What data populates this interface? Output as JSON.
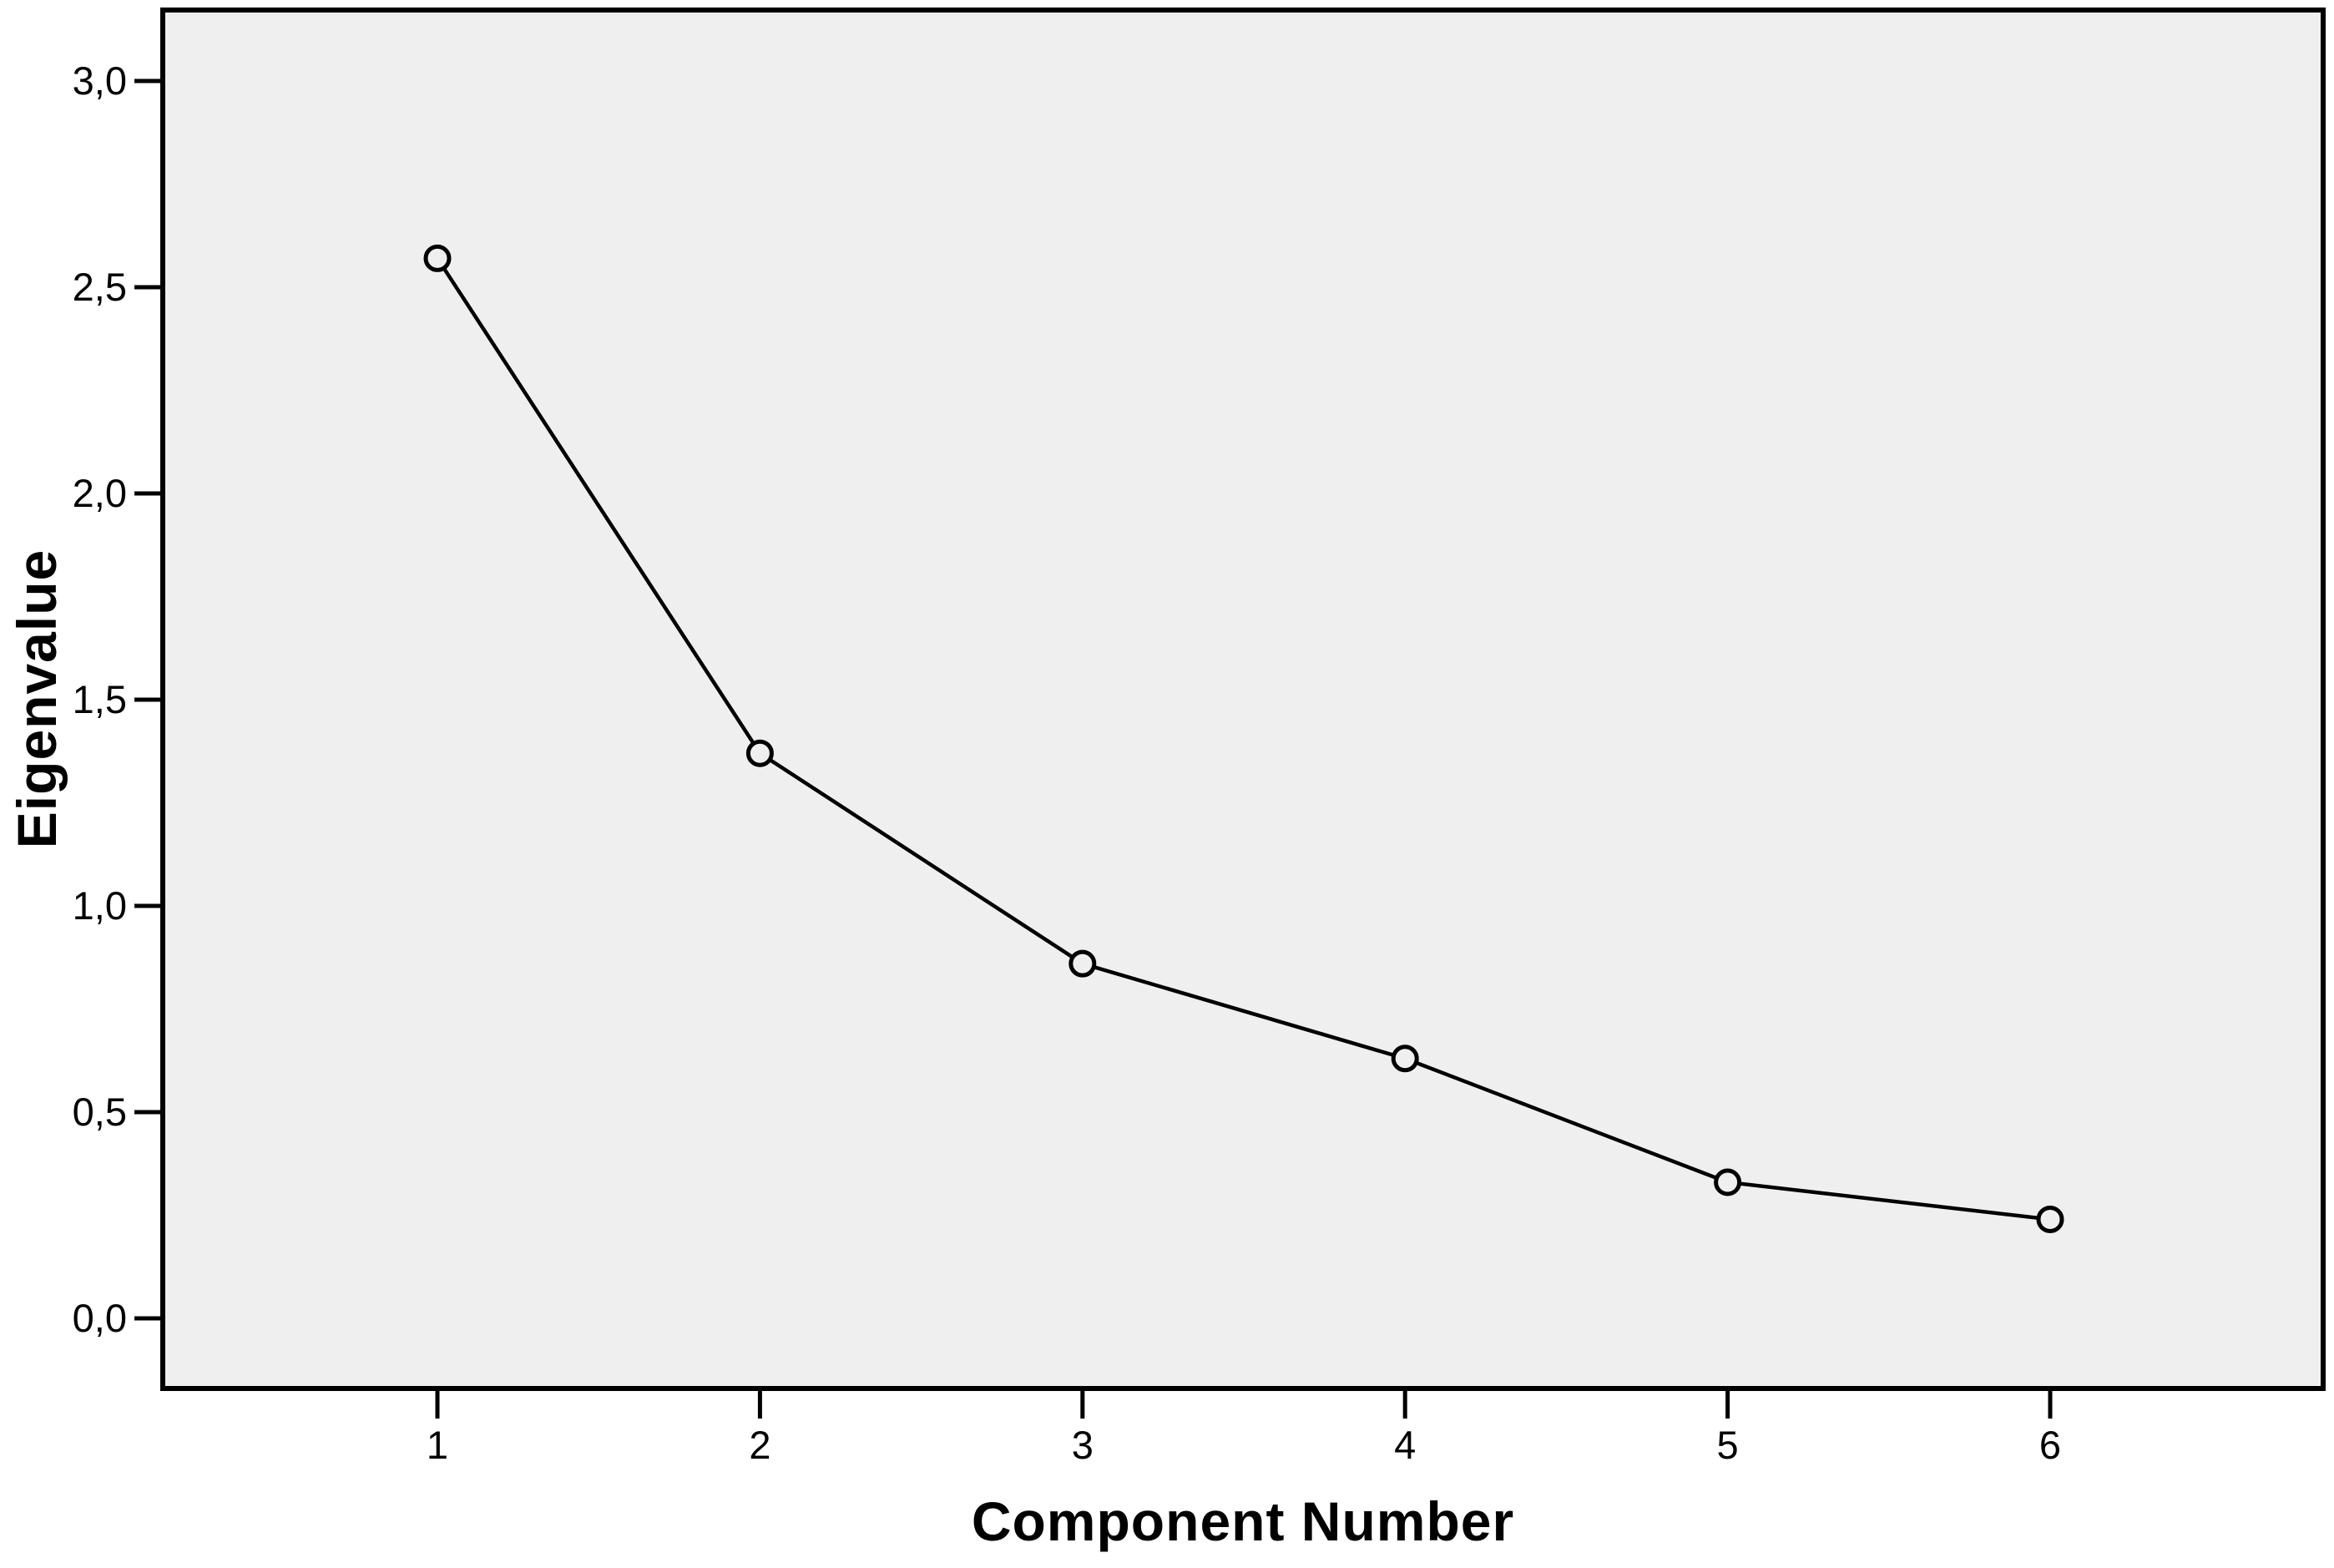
{
  "chart_data": {
    "type": "line",
    "title": "",
    "xlabel": "Component Number",
    "ylabel": "Eigenvalue",
    "x": [
      1,
      2,
      3,
      4,
      5,
      6
    ],
    "values": [
      2.57,
      1.37,
      0.86,
      0.63,
      0.33,
      0.24
    ],
    "series": [
      {
        "name": "Eigenvalue",
        "values": [
          2.57,
          1.37,
          0.86,
          0.63,
          0.33,
          0.24
        ]
      }
    ],
    "x_ticks": [
      "1",
      "2",
      "3",
      "4",
      "5",
      "6"
    ],
    "y_ticks": [
      {
        "label": "3,0",
        "value": 3.0
      },
      {
        "label": "2,5",
        "value": 2.5
      },
      {
        "label": "2,0",
        "value": 2.0
      },
      {
        "label": "1,5",
        "value": 1.5
      },
      {
        "label": "1,0",
        "value": 1.0
      },
      {
        "label": "0,5",
        "value": 0.5
      },
      {
        "label": "0,0",
        "value": 0.0
      }
    ],
    "xlim": [
      0.16,
      6.84
    ],
    "ylim": [
      -0.17,
      3.17
    ],
    "grid": false,
    "legend": "none",
    "marker": "open-circle",
    "decimal_separator": ",",
    "colors": {
      "line": "#000000",
      "marker_stroke": "#000000",
      "plot_background": "#efefef",
      "page_background": "#ffffff",
      "frame": "#000000",
      "text": "#000000"
    }
  }
}
